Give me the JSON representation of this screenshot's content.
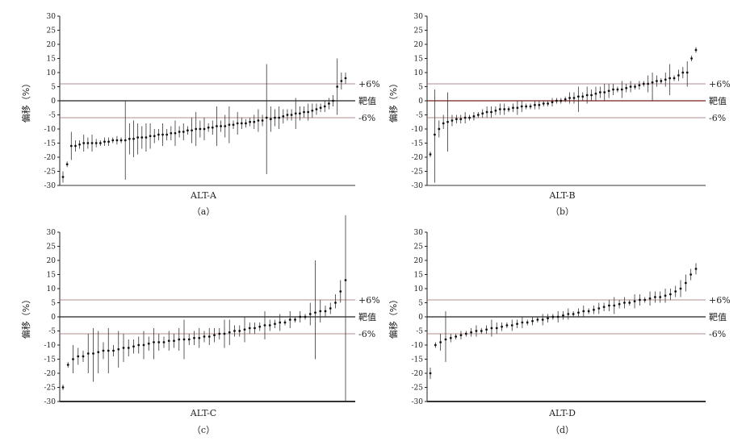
{
  "chart_data": [
    {
      "type": "scatter",
      "panel_label": "（a）",
      "xlabel": "ALT-A",
      "ylabel": "偏移（%）",
      "ylim": [
        -30,
        30
      ],
      "yticks": [
        30,
        25,
        20,
        15,
        10,
        5,
        0,
        -5,
        -10,
        -15,
        -20,
        -25,
        -30
      ],
      "reference_lines": [
        {
          "label": "+6%",
          "value": 6
        },
        {
          "label": "靶值",
          "value": 0
        },
        {
          "label": "-6%",
          "value": -6
        }
      ],
      "points": [
        [
          -27,
          -29,
          -25
        ],
        [
          -22.5,
          -23.5,
          -21.5
        ],
        [
          -16,
          -21,
          -11
        ],
        [
          -16,
          -18,
          -14
        ],
        [
          -15.5,
          -17,
          -14
        ],
        [
          -15,
          -18,
          -12
        ],
        [
          -15,
          -17,
          -13
        ],
        [
          -15,
          -18,
          -12
        ],
        [
          -15,
          -16.5,
          -13.5
        ],
        [
          -15,
          -16,
          -14
        ],
        [
          -14.5,
          -16,
          -13
        ],
        [
          -14.5,
          -16,
          -13
        ],
        [
          -14,
          -15,
          -13
        ],
        [
          -14,
          -15.5,
          -12.5
        ],
        [
          -14,
          -15,
          -13
        ],
        [
          -14,
          -28,
          0
        ],
        [
          -13.5,
          -19,
          -8
        ],
        [
          -13.5,
          -20,
          -7
        ],
        [
          -13,
          -19,
          -8
        ],
        [
          -13,
          -17,
          -9
        ],
        [
          -13,
          -18,
          -8
        ],
        [
          -12.5,
          -17,
          -8
        ],
        [
          -12.5,
          -15,
          -10
        ],
        [
          -12,
          -14,
          -10
        ],
        [
          -12,
          -16,
          -8
        ],
        [
          -12,
          -14,
          -10
        ],
        [
          -11.5,
          -14,
          -9
        ],
        [
          -11.5,
          -16,
          -7
        ],
        [
          -11,
          -13,
          -9
        ],
        [
          -11,
          -14,
          -8
        ],
        [
          -10.5,
          -12,
          -9
        ],
        [
          -10.5,
          -15,
          -6
        ],
        [
          -10,
          -16,
          -4
        ],
        [
          -10,
          -13,
          -7
        ],
        [
          -10,
          -14,
          -6
        ],
        [
          -9.5,
          -11,
          -8
        ],
        [
          -9.5,
          -12,
          -7
        ],
        [
          -9,
          -16,
          -2
        ],
        [
          -9,
          -11,
          -7
        ],
        [
          -9,
          -13,
          -5
        ],
        [
          -8.5,
          -15,
          -2
        ],
        [
          -8.5,
          -10,
          -7
        ],
        [
          -8,
          -12,
          -4
        ],
        [
          -8,
          -10,
          -6
        ],
        [
          -8,
          -9.5,
          -6.5
        ],
        [
          -7.5,
          -9,
          -6
        ],
        [
          -7.5,
          -10,
          -5
        ],
        [
          -7,
          -11,
          -3
        ],
        [
          -7,
          -9,
          -5
        ],
        [
          -6,
          -26,
          13
        ],
        [
          -6.5,
          -11,
          -2
        ],
        [
          -6,
          -9,
          -3
        ],
        [
          -6,
          -10,
          -2
        ],
        [
          -5.5,
          -8,
          -3
        ],
        [
          -5,
          -7,
          -3
        ],
        [
          -5,
          -7,
          -3
        ],
        [
          -4.5,
          -10,
          1
        ],
        [
          -4.5,
          -7,
          -2
        ],
        [
          -4,
          -6,
          -2
        ],
        [
          -4,
          -7,
          -1
        ],
        [
          -3.5,
          -6,
          -1
        ],
        [
          -3,
          -5,
          -1
        ],
        [
          -2.5,
          -4,
          -1
        ],
        [
          -2,
          -4,
          0
        ],
        [
          -1,
          -3,
          1
        ],
        [
          0,
          -2,
          2
        ],
        [
          5,
          -5,
          15
        ],
        [
          7,
          4,
          10
        ],
        [
          8,
          6,
          10
        ]
      ]
    },
    {
      "type": "scatter",
      "panel_label": "（b）",
      "xlabel": "ALT-B",
      "ylabel": "偏移（%）",
      "ylim": [
        -30,
        30
      ],
      "yticks": [
        30,
        25,
        20,
        15,
        10,
        5,
        0,
        -5,
        -10,
        -15,
        -20,
        -25,
        -30
      ],
      "reference_lines": [
        {
          "label": "+6%",
          "value": 6
        },
        {
          "label": "靶值",
          "value": 0
        },
        {
          "label": "-6%",
          "value": -6
        }
      ],
      "points": [
        [
          -19,
          -20,
          -18
        ],
        [
          -12,
          -29,
          4
        ],
        [
          -10,
          -13,
          -7
        ],
        [
          -8,
          -10,
          -5
        ],
        [
          -7.5,
          -18,
          3
        ],
        [
          -7,
          -9,
          -5
        ],
        [
          -6.5,
          -8,
          -5
        ],
        [
          -6.5,
          -8,
          -5
        ],
        [
          -6,
          -8,
          -4
        ],
        [
          -6,
          -7,
          -5
        ],
        [
          -5.5,
          -7,
          -4
        ],
        [
          -5,
          -6,
          -4
        ],
        [
          -4.5,
          -6,
          -3
        ],
        [
          -4,
          -6,
          -2
        ],
        [
          -4,
          -6,
          -2
        ],
        [
          -3.5,
          -5,
          -2
        ],
        [
          -3,
          -5,
          -1
        ],
        [
          -3,
          -5,
          -1
        ],
        [
          -3,
          -4,
          -2
        ],
        [
          -2.5,
          -4,
          -1
        ],
        [
          -2.5,
          -5,
          0
        ],
        [
          -2,
          -4,
          0
        ],
        [
          -2,
          -3,
          -1
        ],
        [
          -2,
          -3,
          -1
        ],
        [
          -1.5,
          -3,
          0
        ],
        [
          -1.5,
          -3,
          0
        ],
        [
          -1,
          -2,
          0
        ],
        [
          -1,
          -2,
          0
        ],
        [
          -0.5,
          -2,
          1
        ],
        [
          0,
          -1,
          1
        ],
        [
          0,
          -1,
          1
        ],
        [
          0.5,
          -0.5,
          1.5
        ],
        [
          1,
          -1,
          3
        ],
        [
          1,
          -1,
          3
        ],
        [
          1.5,
          -4,
          5
        ],
        [
          1.5,
          0,
          3
        ],
        [
          2,
          -1,
          5
        ],
        [
          2,
          0,
          4
        ],
        [
          2.5,
          0,
          5
        ],
        [
          3,
          1,
          5
        ],
        [
          3,
          0,
          6
        ],
        [
          3.5,
          1,
          6
        ],
        [
          4,
          2,
          6
        ],
        [
          4,
          3,
          5
        ],
        [
          4,
          1,
          7
        ],
        [
          4.5,
          3,
          6
        ],
        [
          5,
          3,
          7
        ],
        [
          5,
          4,
          6
        ],
        [
          5.5,
          4,
          7
        ],
        [
          6,
          5,
          7
        ],
        [
          6,
          3,
          9
        ],
        [
          6.5,
          0,
          10
        ],
        [
          7,
          5,
          9
        ],
        [
          7,
          6,
          8
        ],
        [
          7.5,
          5,
          10
        ],
        [
          8,
          2,
          13
        ],
        [
          8,
          7,
          9
        ],
        [
          9,
          7,
          11
        ],
        [
          10,
          8,
          12
        ],
        [
          10,
          5,
          14
        ],
        [
          15,
          14,
          16
        ],
        [
          18,
          17,
          19
        ]
      ]
    },
    {
      "type": "scatter",
      "panel_label": "（c）",
      "xlabel": "ALT-C",
      "ylabel": "偏移（%）",
      "ylim": [
        -30,
        30
      ],
      "yticks": [
        30,
        25,
        20,
        15,
        10,
        5,
        0,
        -5,
        -10,
        -15,
        -20,
        -25,
        -30
      ],
      "reference_lines": [
        {
          "label": "+6%",
          "value": 6
        },
        {
          "label": "靶值",
          "value": 0
        },
        {
          "label": "-6%",
          "value": -6
        }
      ],
      "points": [
        [
          -25,
          -26,
          -24
        ],
        [
          -17,
          -18,
          -16
        ],
        [
          -15,
          -20,
          -10
        ],
        [
          -14,
          -17,
          -11
        ],
        [
          -14,
          -16,
          -12
        ],
        [
          -13,
          -20,
          -6
        ],
        [
          -13,
          -23,
          -4
        ],
        [
          -12.5,
          -20,
          -5
        ],
        [
          -12,
          -15,
          -9
        ],
        [
          -12,
          -20,
          -4
        ],
        [
          -12,
          -14,
          -10
        ],
        [
          -11.5,
          -18,
          -5
        ],
        [
          -11,
          -16,
          -6
        ],
        [
          -11,
          -14,
          -8
        ],
        [
          -10.5,
          -13,
          -8
        ],
        [
          -10,
          -13,
          -7
        ],
        [
          -10,
          -15,
          -5
        ],
        [
          -9.5,
          -12,
          -7
        ],
        [
          -9,
          -15,
          -4
        ],
        [
          -9,
          -12,
          -6
        ],
        [
          -9,
          -11,
          -7
        ],
        [
          -8.5,
          -12,
          -5
        ],
        [
          -8.5,
          -11,
          -6
        ],
        [
          -8,
          -12,
          -4
        ],
        [
          -8,
          -15,
          -1
        ],
        [
          -8,
          -10,
          -6
        ],
        [
          -7.5,
          -10,
          -5
        ],
        [
          -7.5,
          -11,
          -4
        ],
        [
          -7,
          -9,
          -5
        ],
        [
          -7,
          -10,
          -4
        ],
        [
          -6.5,
          -9,
          -4
        ],
        [
          -6,
          -8,
          -4
        ],
        [
          -6,
          -11,
          -1
        ],
        [
          -5.5,
          -10,
          -1
        ],
        [
          -5,
          -7,
          -3
        ],
        [
          -5,
          -7,
          -3
        ],
        [
          -4.5,
          -9,
          0
        ],
        [
          -4,
          -6,
          -2
        ],
        [
          -4,
          -6,
          -2
        ],
        [
          -3.5,
          -5,
          -2
        ],
        [
          -3,
          -8,
          2
        ],
        [
          -3,
          -5,
          -1
        ],
        [
          -2.5,
          -4,
          -1
        ],
        [
          -2,
          -5,
          1
        ],
        [
          -2,
          -3,
          -1
        ],
        [
          -1,
          -4,
          2
        ],
        [
          -1,
          -2,
          0
        ],
        [
          0,
          -2,
          2
        ],
        [
          0,
          -1,
          1
        ],
        [
          1,
          -3,
          5
        ],
        [
          1.5,
          -15,
          20
        ],
        [
          2,
          -2,
          6
        ],
        [
          2,
          0,
          4
        ],
        [
          3,
          1,
          5
        ],
        [
          5,
          3,
          8
        ],
        [
          9,
          5,
          13
        ],
        [
          13,
          -30,
          36
        ]
      ]
    },
    {
      "type": "scatter",
      "panel_label": "（d）",
      "xlabel": "ALT-D",
      "ylabel": "偏移（%）",
      "ylim": [
        -30,
        30
      ],
      "yticks": [
        30,
        25,
        20,
        15,
        10,
        5,
        0,
        -5,
        -10,
        -15,
        -20,
        -25,
        -30
      ],
      "reference_lines": [
        {
          "label": "+6%",
          "value": 6
        },
        {
          "label": "靶值",
          "value": 0
        },
        {
          "label": "-6%",
          "value": -6
        }
      ],
      "points": [
        [
          -20,
          -22,
          -18
        ],
        [
          -10,
          -11,
          -9
        ],
        [
          -9,
          -12,
          -6
        ],
        [
          -8,
          -16,
          2
        ],
        [
          -7.5,
          -9,
          -6
        ],
        [
          -7,
          -8,
          -6
        ],
        [
          -6.5,
          -8,
          -5
        ],
        [
          -6,
          -7,
          -5
        ],
        [
          -5.5,
          -7,
          -4
        ],
        [
          -5,
          -7,
          -3
        ],
        [
          -5,
          -6,
          -4
        ],
        [
          -4.5,
          -6,
          -3
        ],
        [
          -4,
          -7,
          -1
        ],
        [
          -4,
          -6,
          -2
        ],
        [
          -3.5,
          -5,
          -2
        ],
        [
          -3,
          -4,
          -2
        ],
        [
          -3,
          -5,
          -1
        ],
        [
          -2.5,
          -4,
          -1
        ],
        [
          -2,
          -4,
          0
        ],
        [
          -2,
          -3,
          -1
        ],
        [
          -1.5,
          -3,
          0
        ],
        [
          -1,
          -2,
          0
        ],
        [
          -1,
          -3,
          1
        ],
        [
          -0.5,
          -2,
          1
        ],
        [
          0,
          -1,
          1
        ],
        [
          0,
          -2,
          2
        ],
        [
          0.5,
          -1,
          2
        ],
        [
          1,
          -1,
          3
        ],
        [
          1,
          0,
          2
        ],
        [
          1.5,
          0,
          3
        ],
        [
          2,
          0,
          4
        ],
        [
          2,
          1,
          3
        ],
        [
          2.5,
          1,
          4
        ],
        [
          3,
          1,
          5
        ],
        [
          3.5,
          2,
          5
        ],
        [
          4,
          2,
          6
        ],
        [
          4,
          1,
          7
        ],
        [
          4.5,
          3,
          6
        ],
        [
          5,
          3,
          7
        ],
        [
          5,
          4,
          6
        ],
        [
          5.5,
          3,
          8
        ],
        [
          6,
          4,
          8
        ],
        [
          6,
          5,
          7
        ],
        [
          6.5,
          4,
          9
        ],
        [
          7,
          5,
          9
        ],
        [
          7,
          5,
          9
        ],
        [
          7.5,
          5,
          10
        ],
        [
          8,
          6,
          10
        ],
        [
          9,
          7,
          11
        ],
        [
          10,
          7,
          13
        ],
        [
          12,
          9,
          15
        ],
        [
          15,
          13,
          17
        ],
        [
          17,
          15,
          19
        ]
      ]
    }
  ]
}
